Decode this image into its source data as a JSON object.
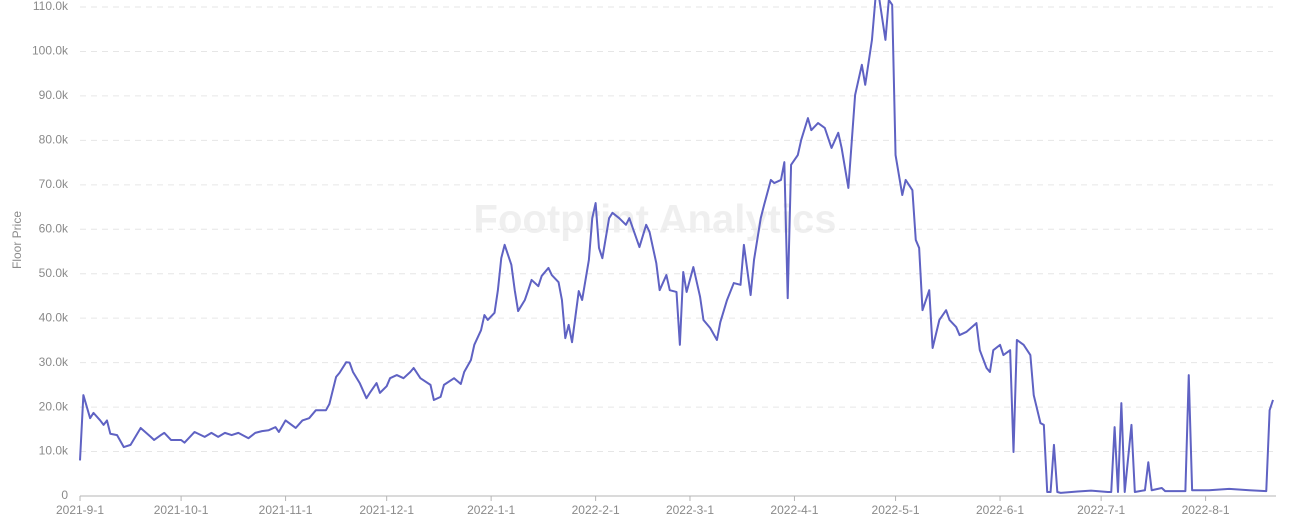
{
  "chart_data": {
    "type": "line",
    "y_label": "Floor Price",
    "watermark": "Footprint Analytics",
    "color": "#5f62c3",
    "grid": true,
    "xlim": [
      "2021-9-1",
      "2022-8-21"
    ],
    "xticks": [
      "2021-9-1",
      "2021-10-1",
      "2021-11-1",
      "2021-12-1",
      "2022-1-1",
      "2022-2-1",
      "2022-3-1",
      "2022-4-1",
      "2022-5-1",
      "2022-6-1",
      "2022-7-1",
      "2022-8-1"
    ],
    "ylim": [
      0,
      110000
    ],
    "yticks": [
      0,
      {
        "value": 10000,
        "label": "10.0k"
      },
      {
        "value": 20000,
        "label": "20.0k"
      },
      {
        "value": 30000,
        "label": "30.0k"
      },
      {
        "value": 40000,
        "label": "40.0k"
      },
      {
        "value": 50000,
        "label": "50.0k"
      },
      {
        "value": 60000,
        "label": "60.0k"
      },
      {
        "value": 70000,
        "label": "70.0k"
      },
      {
        "value": 80000,
        "label": "80.0k"
      },
      {
        "value": 90000,
        "label": "90.0k"
      },
      {
        "value": 100000,
        "label": "100.0k"
      },
      {
        "value": 110000,
        "label": "110.0k"
      }
    ],
    "x": [
      "2021-9-1",
      "2021-9-2",
      "2021-9-4",
      "2021-9-5",
      "2021-9-7",
      "2021-9-8",
      "2021-9-9",
      "2021-9-10",
      "2021-9-12",
      "2021-9-14",
      "2021-9-16",
      "2021-9-19",
      "2021-9-22",
      "2021-9-23",
      "2021-9-25",
      "2021-9-26",
      "2021-9-28",
      "2021-10-1",
      "2021-10-2",
      "2021-10-5",
      "2021-10-8",
      "2021-10-10",
      "2021-10-12",
      "2021-10-14",
      "2021-10-16",
      "2021-10-18",
      "2021-10-21",
      "2021-10-23",
      "2021-10-25",
      "2021-10-27",
      "2021-10-29",
      "2021-10-30",
      "2021-11-1",
      "2021-11-4",
      "2021-11-6",
      "2021-11-8",
      "2021-11-10",
      "2021-11-13",
      "2021-11-14",
      "2021-11-16",
      "2021-11-17",
      "2021-11-19",
      "2021-11-20",
      "2021-11-21",
      "2021-11-23",
      "2021-11-25",
      "2021-11-26",
      "2021-11-28",
      "2021-11-29",
      "2021-12-1",
      "2021-12-2",
      "2021-12-4",
      "2021-12-6",
      "2021-12-8",
      "2021-12-9",
      "2021-12-11",
      "2021-12-14",
      "2021-12-15",
      "2021-12-17",
      "2021-12-18",
      "2021-12-21",
      "2021-12-23",
      "2021-12-24",
      "2021-12-26",
      "2021-12-27",
      "2021-12-29",
      "2021-12-30",
      "2021-12-31",
      "2022-1-2",
      "2022-1-3",
      "2022-1-4",
      "2022-1-5",
      "2022-1-7",
      "2022-1-8",
      "2022-1-9",
      "2022-1-11",
      "2022-1-12",
      "2022-1-13",
      "2022-1-15",
      "2022-1-16",
      "2022-1-18",
      "2022-1-19",
      "2022-1-21",
      "2022-1-22",
      "2022-1-23",
      "2022-1-24",
      "2022-1-25",
      "2022-1-27",
      "2022-1-28",
      "2022-1-30",
      "2022-1-31",
      "2022-2-1",
      "2022-2-2",
      "2022-2-3",
      "2022-2-5",
      "2022-2-6",
      "2022-2-8",
      "2022-2-10",
      "2022-2-11",
      "2022-2-14",
      "2022-2-16",
      "2022-2-17",
      "2022-2-19",
      "2022-2-20",
      "2022-2-22",
      "2022-2-23",
      "2022-2-25",
      "2022-2-26",
      "2022-2-27",
      "2022-2-28",
      "2022-3-2",
      "2022-3-4",
      "2022-3-5",
      "2022-3-7",
      "2022-3-9",
      "2022-3-10",
      "2022-3-12",
      "2022-3-14",
      "2022-3-16",
      "2022-3-17",
      "2022-3-19",
      "2022-3-20",
      "2022-3-22",
      "2022-3-23",
      "2022-3-25",
      "2022-3-26",
      "2022-3-28",
      "2022-3-29",
      "2022-3-30",
      "2022-3-31",
      "2022-4-2",
      "2022-4-3",
      "2022-4-5",
      "2022-4-6",
      "2022-4-8",
      "2022-4-10",
      "2022-4-12",
      "2022-4-14",
      "2022-4-15",
      "2022-4-17",
      "2022-4-19",
      "2022-4-21",
      "2022-4-22",
      "2022-4-24",
      "2022-4-25",
      "2022-4-26",
      "2022-4-28",
      "2022-4-29",
      "2022-4-30",
      "2022-5-1",
      "2022-5-3",
      "2022-5-4",
      "2022-5-6",
      "2022-5-7",
      "2022-5-8",
      "2022-5-9",
      "2022-5-11",
      "2022-5-12",
      "2022-5-14",
      "2022-5-16",
      "2022-5-17",
      "2022-5-19",
      "2022-5-20",
      "2022-5-22",
      "2022-5-25",
      "2022-5-26",
      "2022-5-28",
      "2022-5-29",
      "2022-5-30",
      "2022-6-1",
      "2022-6-2",
      "2022-6-4",
      "2022-6-5",
      "2022-6-6",
      "2022-6-8",
      "2022-6-10",
      "2022-6-11",
      "2022-6-13",
      "2022-6-14",
      "2022-6-15",
      "2022-6-16",
      "2022-6-17",
      "2022-6-18",
      "2022-6-19",
      "2022-6-24",
      "2022-6-28",
      "2022-7-3",
      "2022-7-4",
      "2022-7-5",
      "2022-7-6",
      "2022-7-7",
      "2022-7-8",
      "2022-7-10",
      "2022-7-11",
      "2022-7-14",
      "2022-7-15",
      "2022-7-16",
      "2022-7-19",
      "2022-7-20",
      "2022-7-26",
      "2022-7-27",
      "2022-7-28",
      "2022-8-2",
      "2022-8-8",
      "2022-8-14",
      "2022-8-19",
      "2022-8-20",
      "2022-8-21"
    ],
    "values": [
      8000,
      22700,
      17500,
      18700,
      17000,
      16000,
      17000,
      14000,
      13700,
      11000,
      11500,
      15300,
      13300,
      12600,
      13700,
      14200,
      12600,
      12600,
      12000,
      14400,
      13300,
      14200,
      13300,
      14200,
      13700,
      14200,
      13000,
      14200,
      14600,
      14800,
      15500,
      14400,
      17000,
      15300,
      17000,
      17500,
      19300,
      19300,
      20700,
      26800,
      27700,
      30100,
      30000,
      27900,
      25400,
      22000,
      23200,
      25400,
      23200,
      24700,
      26500,
      27200,
      26500,
      27900,
      28800,
      26500,
      25000,
      21600,
      22300,
      25000,
      26500,
      25200,
      27900,
      30600,
      34000,
      37300,
      40700,
      39600,
      41200,
      46300,
      53500,
      56500,
      52000,
      46300,
      41600,
      44100,
      46300,
      48600,
      47200,
      49500,
      51300,
      49700,
      48100,
      44100,
      35500,
      38500,
      34600,
      46100,
      44100,
      53100,
      62500,
      65900,
      55800,
      53500,
      62500,
      63700,
      62500,
      61000,
      62500,
      56000,
      61000,
      59400,
      52400,
      46300,
      49700,
      46300,
      45900,
      34000,
      50400,
      45900,
      51500,
      44800,
      39600,
      37800,
      35100,
      39100,
      44100,
      47900,
      47500,
      56500,
      45200,
      53100,
      62500,
      65500,
      71100,
      70400,
      71100,
      75100,
      44500,
      74500,
      76700,
      80100,
      85000,
      82300,
      83900,
      82800,
      78300,
      81700,
      78300,
      69300,
      90200,
      97000,
      92500,
      102600,
      111600,
      112700,
      102600,
      111600,
      110500,
      76700,
      67700,
      71100,
      68800,
      57600,
      55800,
      41800,
      46300,
      33300,
      39600,
      41800,
      39600,
      38000,
      36200,
      36900,
      38900,
      32800,
      28800,
      27900,
      32800,
      34000,
      31700,
      32800,
      9900,
      35100,
      34000,
      31700,
      22700,
      16400,
      16000,
      900,
      900,
      11500,
      900,
      700,
      1000,
      1200,
      900,
      900,
      15500,
      900,
      20900,
      900,
      16000,
      900,
      1300,
      7600,
      1300,
      1800,
      1100,
      1100,
      27200,
      1300,
      1300,
      1600,
      1300,
      1100,
      19300,
      21600
    ]
  }
}
